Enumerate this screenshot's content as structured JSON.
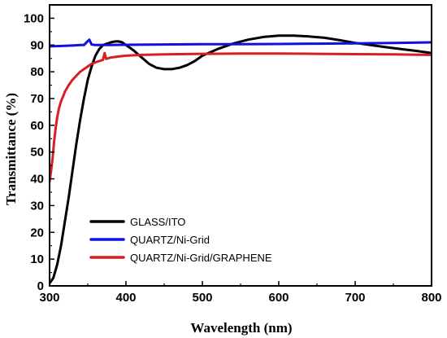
{
  "chart_data": {
    "type": "line",
    "xlabel": "Wavelength (nm)",
    "ylabel": "Transmittance (%)",
    "xlim": [
      300,
      800
    ],
    "ylim": [
      0,
      105
    ],
    "xticks": [
      300,
      400,
      500,
      600,
      700,
      800
    ],
    "yticks": [
      0,
      10,
      20,
      30,
      40,
      50,
      60,
      70,
      80,
      90,
      100
    ],
    "grid": false,
    "legend_position": "bottom-left",
    "series": [
      {
        "name": "GLASS/ITO",
        "color": "#000000",
        "x": [
          300,
          305,
          310,
          315,
          320,
          325,
          330,
          335,
          340,
          345,
          350,
          355,
          360,
          365,
          370,
          375,
          380,
          385,
          390,
          395,
          400,
          410,
          420,
          430,
          440,
          450,
          460,
          470,
          480,
          490,
          500,
          520,
          540,
          560,
          580,
          600,
          620,
          640,
          660,
          680,
          700,
          720,
          740,
          760,
          780,
          800
        ],
        "y": [
          1,
          3,
          8,
          15,
          24,
          33,
          43,
          53,
          62,
          70,
          77,
          82,
          86,
          88.5,
          90,
          90.5,
          91,
          91.3,
          91.4,
          91,
          90,
          88,
          85.5,
          83,
          81.5,
          81,
          81,
          81.5,
          82.5,
          84,
          86,
          88.5,
          90.5,
          92,
          93,
          93.5,
          93.5,
          93.2,
          92.7,
          91.8,
          90.8,
          90,
          89.2,
          88.5,
          87.8,
          87
        ]
      },
      {
        "name": "QUARTZ/Ni-Grid",
        "color": "#1010e0",
        "x": [
          300,
          310,
          320,
          330,
          340,
          345,
          350,
          352,
          355,
          360,
          380,
          400,
          450,
          500,
          550,
          600,
          650,
          700,
          750,
          800
        ],
        "y": [
          89.5,
          89.6,
          89.7,
          89.8,
          90,
          90,
          91.5,
          92,
          90.2,
          90,
          90,
          90.1,
          90.2,
          90.3,
          90.3,
          90.4,
          90.5,
          90.6,
          90.8,
          91
        ]
      },
      {
        "name": "QUARTZ/Ni-Grid/GRAPHENE",
        "color": "#d42020",
        "x": [
          300,
          302,
          304,
          306,
          308,
          310,
          312,
          315,
          318,
          320,
          325,
          330,
          335,
          340,
          345,
          350,
          355,
          360,
          365,
          370,
          372,
          374,
          376,
          380,
          390,
          400,
          420,
          450,
          500,
          550,
          600,
          650,
          700,
          750,
          800
        ],
        "y": [
          39,
          43,
          48,
          54,
          59,
          63,
          66,
          69,
          71,
          72.5,
          75,
          77,
          78.5,
          80,
          81,
          82,
          83,
          83.5,
          84,
          84.5,
          87,
          84.8,
          85,
          85.3,
          85.7,
          86,
          86.3,
          86.5,
          86.7,
          86.8,
          86.8,
          86.7,
          86.6,
          86.5,
          86.3
        ]
      }
    ]
  }
}
